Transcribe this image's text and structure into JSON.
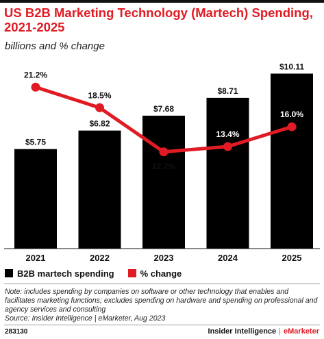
{
  "header": {
    "title": "US B2B Marketing Technology (Martech) Spending, 2021-2025",
    "subtitle": "billions and % change"
  },
  "chart_data": {
    "type": "bar",
    "categories": [
      "2021",
      "2022",
      "2023",
      "2024",
      "2025"
    ],
    "series": [
      {
        "name": "B2B martech spending",
        "kind": "bar",
        "values": [
          5.75,
          6.82,
          7.68,
          8.71,
          10.11
        ],
        "labels": [
          "$5.75",
          "$6.82",
          "$7.68",
          "$8.71",
          "$10.11"
        ],
        "color": "#000000"
      },
      {
        "name": "% change",
        "kind": "line",
        "values": [
          21.2,
          18.5,
          12.7,
          13.4,
          16.0
        ],
        "labels": [
          "21.2%",
          "18.5%",
          "12.7%",
          "13.4%",
          "16.0%"
        ],
        "color": "#e01b24"
      }
    ],
    "ylim_bars": [
      0,
      11
    ],
    "ylim_line": [
      0,
      25
    ],
    "grid": false,
    "legend_position": "bottom-left"
  },
  "notes": {
    "note": "Note: includes spending by companies on software or other technology that enables and facilitates marketing functions; excludes spending on hardware and spending on professional and agency services and consulting",
    "source": "Source: Insider Intelligence | eMarketer, Aug 2023"
  },
  "footer": {
    "chart_id": "283130",
    "brand_left": "Insider Intelligence",
    "brand_separator": "|",
    "brand_right": "eMarketer"
  },
  "colors": {
    "accent": "#e01b24",
    "bar": "#000000"
  }
}
